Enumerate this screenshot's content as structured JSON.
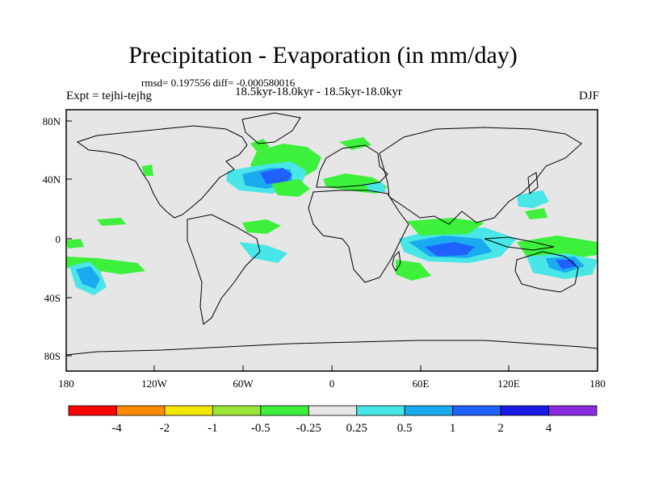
{
  "title": "Precipitation - Evaporation (in mm/day)",
  "stats": "rmsd= 0.197556 diff= -0.000580016",
  "experiment": "Expt = tejhi-tejhg",
  "period": "18.5kyr-18.0kyr - 18.5kyr-18.0kyr",
  "season": "DJF",
  "lat_labels": [
    "80N",
    "40N",
    "0",
    "40S",
    "80S"
  ],
  "lon_labels": [
    "180",
    "120W",
    "60W",
    "0",
    "60E",
    "120E",
    "180"
  ],
  "colorbar": {
    "labels": [
      "-4",
      "-2",
      "-1",
      "-0.5",
      "-0.25",
      "0.25",
      "0.5",
      "1",
      "2",
      "4"
    ],
    "colors": [
      "#ff0000",
      "#ff8c00",
      "#f2e600",
      "#9be635",
      "#3cf03c",
      "#e6e6e6",
      "#48e6e6",
      "#19aaf0",
      "#2060ff",
      "#1a1ae6",
      "#8a2be2"
    ]
  },
  "colors": {
    "ocean": "#e6e6e6",
    "frame": "#000000"
  }
}
